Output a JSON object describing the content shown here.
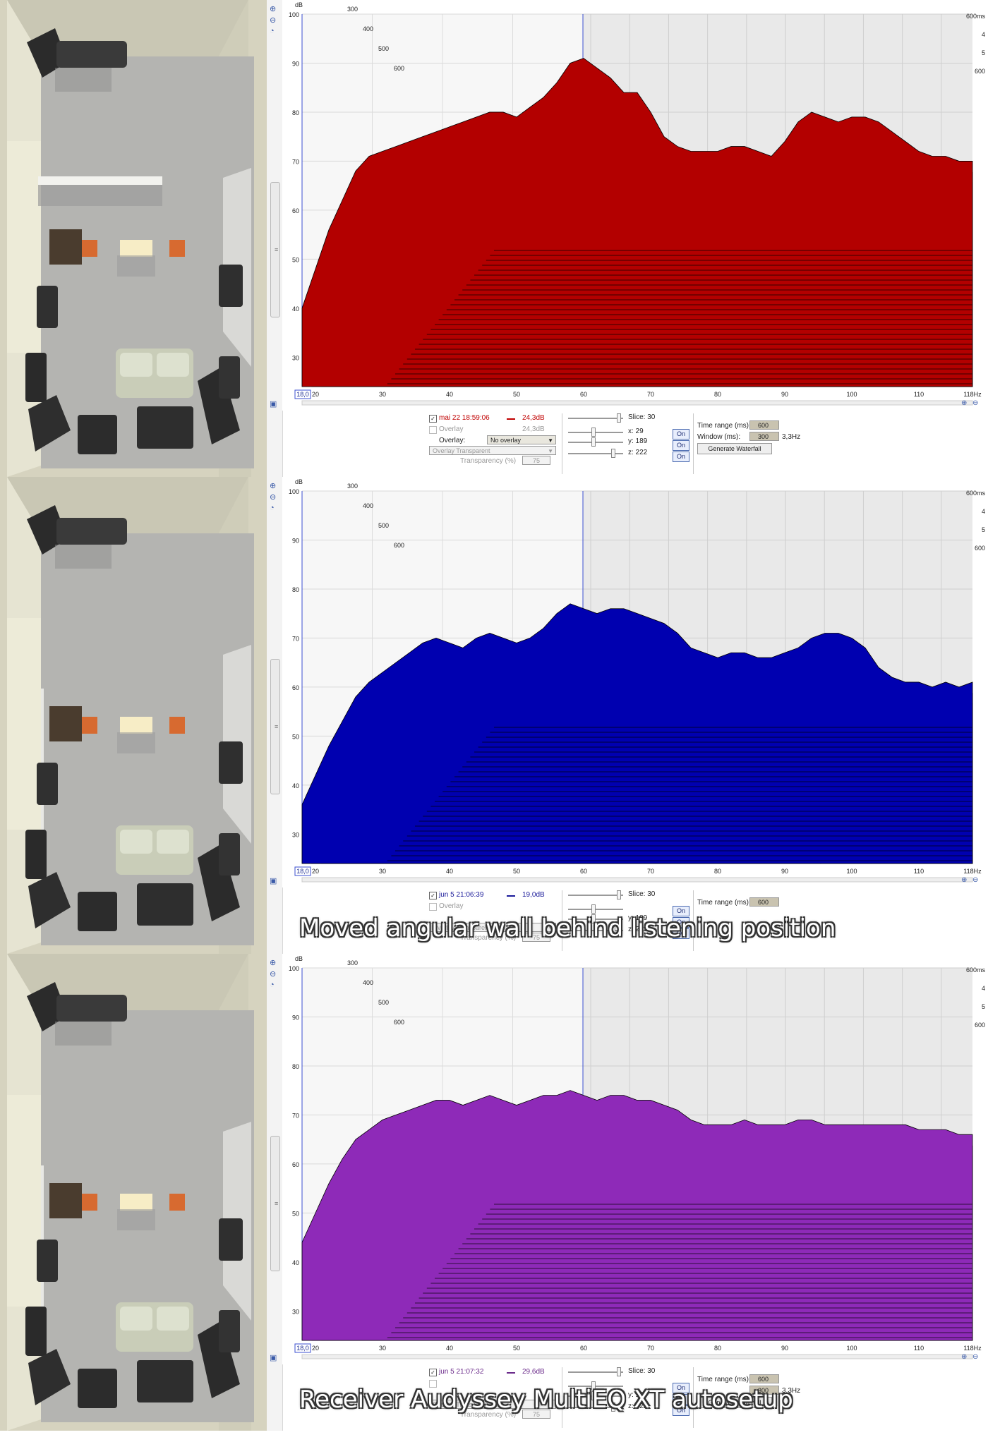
{
  "panels": [
    {
      "id": "p1",
      "caption": "",
      "fill": "#b30000",
      "controls": {
        "meas_label": "mai 22 18:59:06",
        "meas_value": "24,3dB",
        "meas_color": "#c00000",
        "overlay_check_label": "Overlay",
        "overlay_value": "24,3dB",
        "overlay_label": "Overlay:",
        "overlay_select": "No overlay",
        "overlay_mode": "Overlay Transparent",
        "transparency_label": "Transparency (%)",
        "transparency_value": "75",
        "slice_label": "Slice: 30",
        "x_label": "x: 29",
        "y_label": "y: 189",
        "z_label": "z: 222",
        "on_label": "On",
        "time_range_label": "Time range (ms):",
        "time_range_value": "600",
        "window_label": "Window (ms):",
        "window_value": "300",
        "resolution": "3,3Hz",
        "generate_label": "Generate Waterfall"
      },
      "chart_data": {
        "type": "area",
        "title": "",
        "xlabel": "",
        "ylabel": "dB",
        "x_unit": "Hz",
        "x_range": [
          18,
          118
        ],
        "ylim": [
          24,
          100
        ],
        "x_ticks": [
          "20",
          "30",
          "40",
          "50",
          "60",
          "70",
          "80",
          "90",
          "100",
          "110",
          "118Hz"
        ],
        "x_start_label": "18,0",
        "y_ticks": [
          "100",
          "90",
          "80",
          "70",
          "60",
          "50",
          "40",
          "30"
        ],
        "z_ticks_left": [
          "300",
          "400",
          "500",
          "600"
        ],
        "z_ticks_right": [
          "600ms",
          "4",
          "5",
          "600"
        ],
        "slices": 30,
        "time_range_ms": 600,
        "front_slice": {
          "x": [
            18,
            20,
            22,
            24,
            26,
            28,
            30,
            32,
            34,
            36,
            38,
            40,
            42,
            44,
            46,
            48,
            50,
            52,
            54,
            56,
            58,
            60,
            62,
            64,
            66,
            68,
            70,
            72,
            74,
            76,
            78,
            80,
            82,
            84,
            86,
            88,
            90,
            92,
            94,
            96,
            98,
            100,
            102,
            104,
            106,
            108,
            110,
            112,
            114,
            116,
            118
          ],
          "y": [
            40,
            48,
            56,
            62,
            68,
            71,
            72,
            73,
            74,
            75,
            76,
            77,
            78,
            79,
            80,
            80,
            79,
            81,
            83,
            86,
            90,
            91,
            89,
            87,
            84,
            84,
            80,
            75,
            73,
            72,
            72,
            72,
            73,
            73,
            72,
            71,
            74,
            78,
            80,
            79,
            78,
            79,
            79,
            78,
            76,
            74,
            72,
            71,
            71,
            70,
            70
          ]
        }
      }
    },
    {
      "id": "p2",
      "caption": "Moved angular wall behind listening position",
      "fill": "#0000b0",
      "controls": {
        "meas_label": "jun 5 21:06:39",
        "meas_value": "19,0dB",
        "meas_color": "#1a1a9a",
        "overlay_check_label": "Overlay",
        "overlay_value": "",
        "overlay_label": "",
        "overlay_select": "",
        "overlay_mode": "Overlay Transparent",
        "transparency_label": "Transparency (%)",
        "transparency_value": "75",
        "slice_label": "Slice: 30",
        "x_label": "",
        "y_label": "y: 189",
        "z_label": "z: 222",
        "on_label": "On",
        "time_range_label": "Time range (ms):",
        "time_range_value": "600",
        "window_label": "",
        "window_value": "",
        "resolution": "",
        "generate_label": ""
      },
      "chart_data": {
        "type": "area",
        "title": "",
        "xlabel": "",
        "ylabel": "dB",
        "x_unit": "Hz",
        "x_range": [
          18,
          118
        ],
        "ylim": [
          24,
          100
        ],
        "x_ticks": [
          "20",
          "30",
          "40",
          "50",
          "60",
          "70",
          "80",
          "90",
          "100",
          "110",
          "118Hz"
        ],
        "x_start_label": "18,0",
        "y_ticks": [
          "100",
          "90",
          "80",
          "70",
          "60",
          "50",
          "40",
          "30"
        ],
        "z_ticks_left": [
          "300",
          "400",
          "500",
          "600"
        ],
        "z_ticks_right": [
          "600ms",
          "4",
          "5",
          "600"
        ],
        "slices": 30,
        "time_range_ms": 600,
        "front_slice": {
          "x": [
            18,
            20,
            22,
            24,
            26,
            28,
            30,
            32,
            34,
            36,
            38,
            40,
            42,
            44,
            46,
            48,
            50,
            52,
            54,
            56,
            58,
            60,
            62,
            64,
            66,
            68,
            70,
            72,
            74,
            76,
            78,
            80,
            82,
            84,
            86,
            88,
            90,
            92,
            94,
            96,
            98,
            100,
            102,
            104,
            106,
            108,
            110,
            112,
            114,
            116,
            118
          ],
          "y": [
            36,
            42,
            48,
            53,
            58,
            61,
            63,
            65,
            67,
            69,
            70,
            69,
            68,
            70,
            71,
            70,
            69,
            70,
            72,
            75,
            77,
            76,
            75,
            76,
            76,
            75,
            74,
            73,
            71,
            68,
            67,
            66,
            67,
            67,
            66,
            66,
            67,
            68,
            70,
            71,
            71,
            70,
            68,
            64,
            62,
            61,
            61,
            60,
            61,
            60,
            61
          ]
        }
      }
    },
    {
      "id": "p3",
      "caption": "Receiver Audyssey MultiEQ XT autosetup",
      "fill": "#8e2ab8",
      "controls": {
        "meas_label": "jun 5 21:07:32",
        "meas_value": "29,6dB",
        "meas_color": "#6a2a8a",
        "overlay_check_label": "",
        "overlay_value": "",
        "overlay_label": "",
        "overlay_select": "",
        "overlay_mode": "Overlay Transparent",
        "transparency_label": "Transparency (%)",
        "transparency_value": "75",
        "slice_label": "Slice: 30",
        "x_label": "",
        "y_label": "y: 189",
        "z_label": "z: 222",
        "on_label": "On",
        "time_range_label": "Time range (ms):",
        "time_range_value": "600",
        "window_label": "",
        "window_value": "300",
        "resolution": "3,3Hz",
        "generate_label": "Generate Waterfall"
      },
      "chart_data": {
        "type": "area",
        "title": "",
        "xlabel": "",
        "ylabel": "dB",
        "x_unit": "Hz",
        "x_range": [
          18,
          118
        ],
        "ylim": [
          24,
          100
        ],
        "x_ticks": [
          "20",
          "30",
          "40",
          "50",
          "60",
          "70",
          "80",
          "90",
          "100",
          "110",
          "118Hz"
        ],
        "x_start_label": "18,0",
        "y_ticks": [
          "100",
          "90",
          "80",
          "70",
          "60",
          "50",
          "40",
          "30"
        ],
        "z_ticks_left": [
          "300",
          "400",
          "500",
          "600"
        ],
        "z_ticks_right": [
          "600ms",
          "4",
          "5",
          "600"
        ],
        "slices": 30,
        "time_range_ms": 600,
        "front_slice": {
          "x": [
            18,
            20,
            22,
            24,
            26,
            28,
            30,
            32,
            34,
            36,
            38,
            40,
            42,
            44,
            46,
            48,
            50,
            52,
            54,
            56,
            58,
            60,
            62,
            64,
            66,
            68,
            70,
            72,
            74,
            76,
            78,
            80,
            82,
            84,
            86,
            88,
            90,
            92,
            94,
            96,
            98,
            100,
            102,
            104,
            106,
            108,
            110,
            112,
            114,
            116,
            118
          ],
          "y": [
            44,
            50,
            56,
            61,
            65,
            67,
            69,
            70,
            71,
            72,
            73,
            73,
            72,
            73,
            74,
            73,
            72,
            73,
            74,
            74,
            75,
            74,
            73,
            74,
            74,
            73,
            73,
            72,
            71,
            69,
            68,
            68,
            68,
            69,
            68,
            68,
            68,
            69,
            69,
            68,
            68,
            68,
            68,
            68,
            68,
            68,
            67,
            67,
            67,
            66,
            66
          ]
        }
      }
    }
  ]
}
